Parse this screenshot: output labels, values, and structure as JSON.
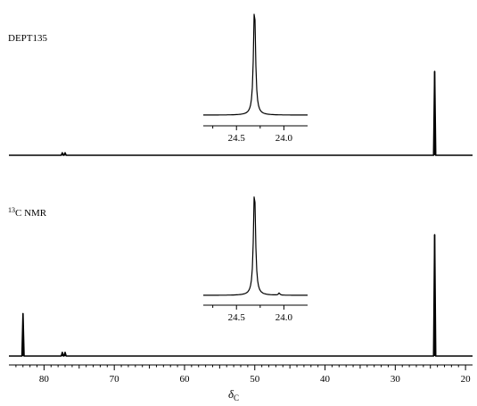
{
  "chart_data": [
    {
      "type": "line",
      "title": "DEPT135",
      "xlim": [
        85,
        19
      ],
      "x_reversed": true,
      "peaks": [
        {
          "x": 77.4,
          "height": 0.03
        },
        {
          "x": 77.0,
          "height": 0.03
        },
        {
          "x": 24.4,
          "height": 1.0
        }
      ]
    },
    {
      "type": "line",
      "title_sup": "13",
      "title_rest": "C NMR",
      "xlim": [
        85,
        19
      ],
      "x_reversed": true,
      "xlabel_main": "δ",
      "xlabel_sub": "C",
      "xticks": [
        80,
        70,
        60,
        50,
        40,
        30,
        20
      ],
      "tick_labels": [
        "80",
        "70",
        "60",
        "50",
        "40",
        "30",
        "20"
      ],
      "peaks": [
        {
          "x": 83.0,
          "height": 0.35
        },
        {
          "x": 77.4,
          "height": 0.03
        },
        {
          "x": 77.0,
          "height": 0.03
        },
        {
          "x": 24.4,
          "height": 1.0
        }
      ]
    },
    {
      "type": "line",
      "role": "inset-dept",
      "xlim": [
        24.85,
        23.75
      ],
      "x_reversed": true,
      "xticks": [
        24.75,
        24.5,
        24.25,
        24.0
      ],
      "labeled_ticks": [
        24.5,
        24.0
      ],
      "tick_labels": [
        "24.5",
        "24.0"
      ],
      "peaks": [
        {
          "x": 24.31,
          "height": 1.0
        }
      ]
    },
    {
      "type": "line",
      "role": "inset-c13",
      "xlim": [
        24.85,
        23.75
      ],
      "x_reversed": true,
      "xticks": [
        24.75,
        24.5,
        24.25,
        24.0
      ],
      "labeled_ticks": [
        24.5,
        24.0
      ],
      "tick_labels": [
        "24.5",
        "24.0"
      ],
      "peaks": [
        {
          "x": 24.31,
          "height": 1.0
        },
        {
          "x": 24.05,
          "height": 0.02
        }
      ]
    }
  ]
}
